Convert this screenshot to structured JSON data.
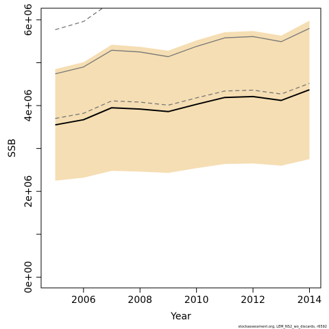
{
  "chart_data": {
    "type": "area",
    "title": "",
    "xlabel": "Year",
    "ylabel": "SSB",
    "x": [
      2005,
      2006,
      2007,
      2008,
      2009,
      2010,
      2011,
      2012,
      2013,
      2014
    ],
    "xlim": [
      2004.5,
      2014.4
    ],
    "ylim": [
      -250000,
      6270000
    ],
    "x_ticks": [
      2006,
      2008,
      2010,
      2012,
      2014
    ],
    "x_tick_labels": [
      "2006",
      "2008",
      "2010",
      "2012",
      "2014"
    ],
    "y_ticks": [
      0,
      1000000,
      2000000,
      3000000,
      4000000,
      5000000,
      6000000
    ],
    "y_tick_labels": [
      "0e+00",
      "",
      "2e+06",
      "",
      "4e+06",
      "",
      "6e+06"
    ],
    "band": {
      "color": "#f5deb3",
      "lower": [
        2250000,
        2320000,
        2480000,
        2460000,
        2430000,
        2540000,
        2640000,
        2650000,
        2600000,
        2750000
      ],
      "upper": [
        4850000,
        5010000,
        5420000,
        5370000,
        5280000,
        5520000,
        5710000,
        5740000,
        5630000,
        5980000
      ]
    },
    "series": [
      {
        "values": [
          3550000,
          3670000,
          3950000,
          3920000,
          3860000,
          4030000,
          4190000,
          4210000,
          4120000,
          4370000
        ],
        "color": "#000000",
        "style": "solid",
        "width": 2
      },
      {
        "values": [
          3700000,
          3820000,
          4110000,
          4080000,
          4010000,
          4180000,
          4340000,
          4360000,
          4270000,
          4520000
        ],
        "color": "#777777",
        "style": "dashed",
        "width": 1.3
      },
      {
        "values": [
          4740000,
          4900000,
          5290000,
          5250000,
          5140000,
          5380000,
          5580000,
          5610000,
          5490000,
          5800000
        ],
        "color": "#777777",
        "style": "solid",
        "width": 1.3
      },
      {
        "values": [
          5770000,
          5960000,
          6420000,
          null,
          null,
          null,
          null,
          null,
          null,
          null
        ],
        "color": "#777777",
        "style": "dashed",
        "width": 1.3
      }
    ],
    "footnote": "stockassessment.org, LEM_NS2_wo_discards, r6592",
    "grid": false,
    "legend": "none"
  }
}
